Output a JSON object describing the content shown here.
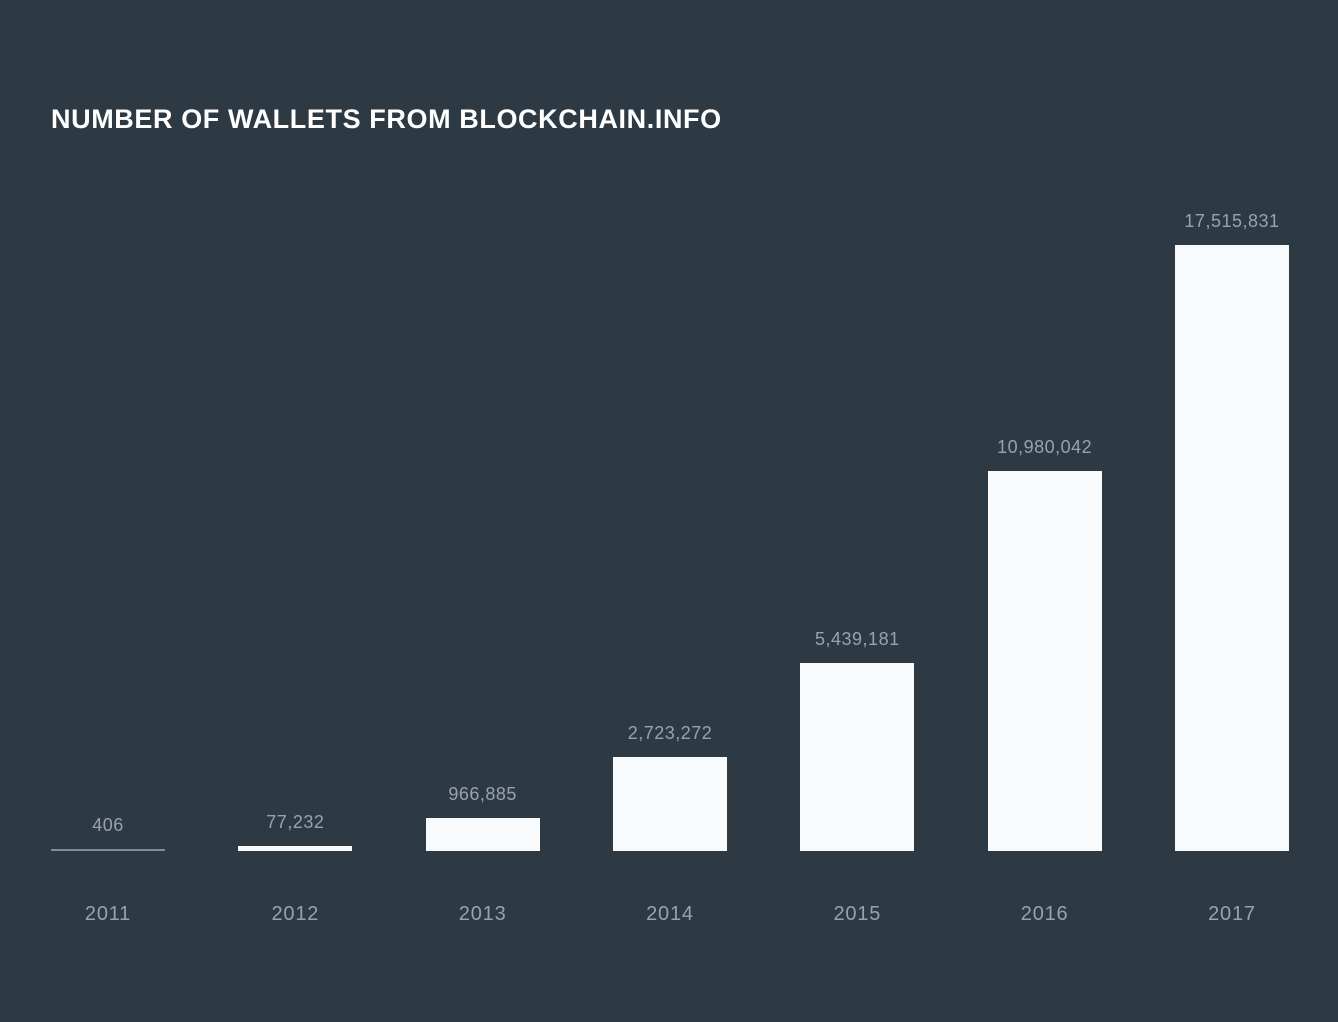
{
  "chart": {
    "title": "NUMBER OF WALLETS FROM BLOCKCHAIN.INFO"
  },
  "chart_data": {
    "type": "bar",
    "title": "NUMBER OF WALLETS FROM BLOCKCHAIN.INFO",
    "categories": [
      "2011",
      "2012",
      "2013",
      "2014",
      "2015",
      "2016",
      "2017"
    ],
    "values": [
      406,
      77232,
      966885,
      2723272,
      5439181,
      10980042,
      17515831
    ],
    "value_labels": [
      "406",
      "77,232",
      "966,885",
      "2,723,272",
      "5,439,181",
      "10,980,042",
      "17,515,831"
    ],
    "xlabel": "",
    "ylabel": "",
    "ylim": [
      0,
      17515831
    ],
    "grid": false,
    "legend": false,
    "orientation": "vertical",
    "colors": {
      "background": "#2e3a43",
      "bar": "#f9fafb",
      "hairline_bar": "#848d96",
      "label": "#99a2ab",
      "title": "#ffffff"
    }
  }
}
